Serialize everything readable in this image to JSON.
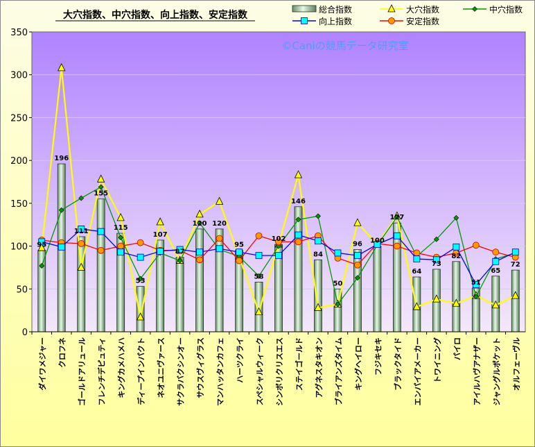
{
  "chart_data": {
    "type": "bar",
    "title": "大穴指数、中穴指数、向上指数、安定指数",
    "watermark": "©Caniの競馬データ研究室",
    "ylim": [
      0,
      350
    ],
    "y_ticks": [
      "0",
      "50",
      "100",
      "150",
      "200",
      "250",
      "300",
      "350"
    ],
    "grid": true,
    "legend_position": "top-right",
    "categories": [
      "ダイワメジャー",
      "クロフネ",
      "ゴールドアリュール",
      "フレンチデピュティ",
      "キングカメハメハ",
      "ディープインパクト",
      "ネオユニヴァース",
      "サクラバクシンオー",
      "サウスヴィグラス",
      "マンハッタンカフェ",
      "ハーツクライ",
      "スペシャルウィーク",
      "シンボリクリスエス",
      "ステイゴールド",
      "アグネスタキオン",
      "ブライアンズタイム",
      "キングヘイロー",
      "フジキセキ",
      "ブラックタイド",
      "エンパイアメーカー",
      "トワイニング",
      "パイロ",
      "アイルハヴアナザー",
      "ジャングルポケット",
      "オルフェーヴル"
    ],
    "series": [
      {
        "name": "総合指数",
        "type": "bar",
        "values": [
          95,
          196,
          111,
          155,
          115,
          53,
          107,
          87,
          120,
          120,
          95,
          58,
          102,
          146,
          84,
          50,
          96,
          100,
          127,
          64,
          73,
          82,
          51,
          65,
          72
        ],
        "labels": [
          "95",
          "196",
          "111",
          "155",
          "115",
          "53",
          "107",
          "87",
          "120",
          "120",
          "95",
          "58",
          "102",
          "146",
          "84",
          "50",
          "96",
          "100",
          "127",
          "64",
          "73",
          "82",
          "51",
          "65",
          "72"
        ],
        "color": "#c8ecc8"
      },
      {
        "name": "大穴指数",
        "type": "line",
        "marker": "triangle",
        "values": [
          98,
          308,
          75,
          178,
          133,
          17,
          128,
          83,
          137,
          152,
          88,
          23,
          102,
          183,
          28,
          32,
          127,
          102,
          135,
          29,
          38,
          33,
          42,
          31,
          42
        ],
        "color": "#ffff00"
      },
      {
        "name": "中穴指数",
        "type": "line",
        "marker": "diamond",
        "values": [
          77,
          142,
          156,
          169,
          110,
          62,
          92,
          83,
          127,
          96,
          88,
          65,
          100,
          131,
          135,
          32,
          63,
          101,
          134,
          88,
          108,
          133,
          41,
          85,
          92
        ],
        "color": "#009900"
      },
      {
        "name": "向上指数",
        "type": "line",
        "marker": "square",
        "values": [
          105,
          99,
          120,
          117,
          93,
          87,
          94,
          96,
          93,
          97,
          93,
          89,
          89,
          113,
          106,
          92,
          89,
          102,
          112,
          85,
          84,
          99,
          55,
          82,
          93
        ],
        "color": "#0000ff"
      },
      {
        "name": "安定指数",
        "type": "line",
        "marker": "circle",
        "values": [
          107,
          104,
          103,
          95,
          100,
          104,
          95,
          95,
          84,
          109,
          83,
          112,
          105,
          105,
          112,
          86,
          78,
          103,
          100,
          92,
          87,
          92,
          101,
          93,
          87
        ],
        "color": "#ff0000"
      }
    ]
  }
}
